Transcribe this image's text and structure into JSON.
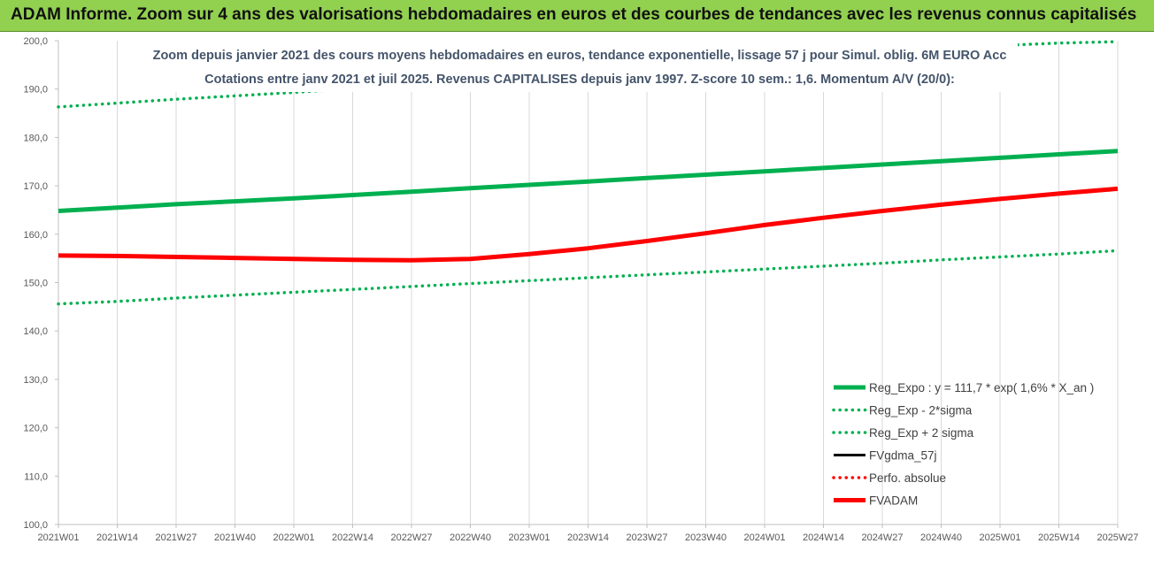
{
  "header": {
    "title": "ADAM Informe. Zoom sur 4 ans des valorisations hebdomadaires en euros et des courbes de tendances avec les revenus connus capitalisés"
  },
  "colors": {
    "header_bg": "#92d050",
    "green": "#00b050",
    "red": "#ff0000",
    "black": "#000000",
    "title_text": "#44546a"
  },
  "chart_data": {
    "type": "line",
    "title_line1": "Zoom depuis janvier 2021 des cours moyens hebdomadaires en euros, tendance exponentielle, lissage 57 j pour Simul. oblig. 6M EURO Acc",
    "title_line2": "Cotations entre janv 2021 et juil 2025. Revenus CAPITALISES depuis janv 1997. Z-score 10 sem.: 1,6. Momentum A/V (20/0):",
    "ylim": [
      100,
      200
    ],
    "y_ticks": [
      "100,0",
      "110,0",
      "120,0",
      "130,0",
      "140,0",
      "150,0",
      "160,0",
      "170,0",
      "180,0",
      "190,0",
      "200,0"
    ],
    "y_tick_values": [
      100,
      110,
      120,
      130,
      140,
      150,
      160,
      170,
      180,
      190,
      200
    ],
    "x_ticks": [
      "2021W01",
      "2021W14",
      "2021W27",
      "2021W40",
      "2022W01",
      "2022W14",
      "2022W27",
      "2022W40",
      "2023W01",
      "2023W14",
      "2023W27",
      "2023W40",
      "2024W01",
      "2024W14",
      "2024W27",
      "2024W40",
      "2025W01",
      "2025W14",
      "2025W27"
    ],
    "grid": "vertical",
    "legend_placement": "bottom-right",
    "series": [
      {
        "name": "Reg_Expo : y = 111,7 * exp( 1,6% *  X_an )",
        "style": "solid-thick",
        "color": "#00b050",
        "values": [
          164.8,
          165.5,
          166.2,
          166.8,
          167.4,
          168.1,
          168.8,
          169.5,
          170.2,
          170.9,
          171.6,
          172.3,
          173.0,
          173.7,
          174.4,
          175.1,
          175.8,
          176.5,
          177.2
        ]
      },
      {
        "name": "Reg_Exp - 2*sigma",
        "style": "dotted",
        "color": "#00b050",
        "values": [
          145.6,
          146.1,
          146.8,
          147.4,
          148.0,
          148.6,
          149.2,
          149.8,
          150.4,
          151.0,
          151.6,
          152.2,
          152.8,
          153.4,
          154.0,
          154.7,
          155.3,
          155.9,
          156.6
        ]
      },
      {
        "name": "Reg_Exp + 2 sigma",
        "style": "dotted",
        "color": "#00b050",
        "values": [
          186.3,
          187.1,
          187.9,
          188.6,
          189.3,
          190.1,
          190.9,
          191.7,
          192.5,
          193.3,
          194.1,
          194.9,
          195.7,
          196.5,
          197.4,
          198.2,
          199.0,
          199.5,
          199.8
        ]
      },
      {
        "name": "FVgdma_57j",
        "style": "solid",
        "color": "#000000",
        "values": []
      },
      {
        "name": "Perfo. absolue",
        "style": "dotted",
        "color": "#ff0000",
        "values": []
      },
      {
        "name": "FVADAM",
        "style": "solid-thick",
        "color": "#ff0000",
        "values": [
          155.6,
          155.5,
          155.3,
          155.1,
          154.9,
          154.7,
          154.6,
          154.9,
          155.9,
          157.1,
          158.6,
          160.2,
          161.9,
          163.4,
          164.8,
          166.1,
          167.3,
          168.4,
          169.4
        ]
      }
    ]
  }
}
